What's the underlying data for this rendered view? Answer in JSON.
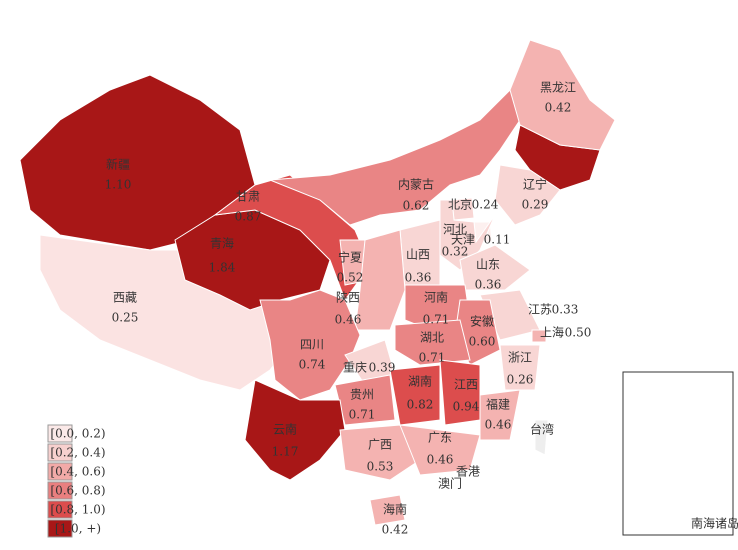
{
  "regions": [
    {
      "name": "新疆",
      "value": 1.1,
      "label": "1.10",
      "color": "#a81717"
    },
    {
      "name": "西藏",
      "value": 0.25,
      "label": "0.25",
      "color": "#fbe3e2"
    },
    {
      "name": "青海",
      "value": 1.84,
      "label": "1.84",
      "color": "#a81717"
    },
    {
      "name": "甘肃",
      "value": 0.87,
      "label": "0.87",
      "color": "#dc4d4d"
    },
    {
      "name": "内蒙古",
      "value": 0.62,
      "label": "0.62",
      "color": "#e98585"
    },
    {
      "name": "黑龙江",
      "value": 0.42,
      "label": "0.42",
      "color": "#f4b3b1"
    },
    {
      "name": "辽宁",
      "value": 0.29,
      "label": "0.29",
      "color": "#f8d6d4"
    },
    {
      "name": "北京",
      "value": 0.24,
      "label": "0.24",
      "color": "#f8d6d4"
    },
    {
      "name": "天津",
      "value": 0.11,
      "label": "0.11",
      "color": "#fdf0ef"
    },
    {
      "name": "河北",
      "value": 0.32,
      "label": "0.32",
      "color": "#f8d6d4"
    },
    {
      "name": "山西",
      "value": 0.36,
      "label": "0.36",
      "color": "#f8d6d4"
    },
    {
      "name": "山东",
      "value": 0.36,
      "label": "0.36",
      "color": "#f8d6d4"
    },
    {
      "name": "宁夏",
      "value": 0.52,
      "label": "0.52",
      "color": "#f4b3b1"
    },
    {
      "name": "陕西",
      "value": 0.46,
      "label": "0.46",
      "color": "#f4b3b1"
    },
    {
      "name": "河南",
      "value": 0.71,
      "label": "0.71",
      "color": "#e98585"
    },
    {
      "name": "江苏",
      "value": 0.33,
      "label": "0.33",
      "color": "#f8d6d4"
    },
    {
      "name": "安徽",
      "value": 0.6,
      "label": "0.60",
      "color": "#e98585"
    },
    {
      "name": "上海",
      "value": 0.5,
      "label": "0.50",
      "color": "#f4b3b1"
    },
    {
      "name": "湖北",
      "value": 0.71,
      "label": "0.71",
      "color": "#e98585"
    },
    {
      "name": "四川",
      "value": 0.74,
      "label": "0.74",
      "color": "#e98585"
    },
    {
      "name": "重庆",
      "value": 0.39,
      "label": "0.39",
      "color": "#f8d6d4"
    },
    {
      "name": "浙江",
      "value": 0.26,
      "label": "0.26",
      "color": "#f8d6d4"
    },
    {
      "name": "湖南",
      "value": 0.82,
      "label": "0.82",
      "color": "#dc4d4d"
    },
    {
      "name": "江西",
      "value": 0.94,
      "label": "0.94",
      "color": "#dc4d4d"
    },
    {
      "name": "福建",
      "value": 0.46,
      "label": "0.46",
      "color": "#f4b3b1"
    },
    {
      "name": "贵州",
      "value": 0.71,
      "label": "0.71",
      "color": "#e98585"
    },
    {
      "name": "云南",
      "value": 1.17,
      "label": "1.17",
      "color": "#a81717"
    },
    {
      "name": "广西",
      "value": 0.53,
      "label": "0.53",
      "color": "#f4b3b1"
    },
    {
      "name": "广东",
      "value": 0.46,
      "label": "0.46",
      "color": "#f4b3b1"
    },
    {
      "name": "海南",
      "value": 0.42,
      "label": "0.42",
      "color": "#f4b3b1"
    }
  ],
  "places": [
    "香港",
    "澳门",
    "台湾",
    "南海诸岛"
  ],
  "legend": [
    {
      "label": "[0.0, 0.2)",
      "color": "#fbe9e8"
    },
    {
      "label": "[0.2, 0.4)",
      "color": "#f7d0ce"
    },
    {
      "label": "[0.4, 0.6)",
      "color": "#f2aaa8"
    },
    {
      "label": "[0.6, 0.8)",
      "color": "#e97f7f"
    },
    {
      "label": "[0.8, 1.0)",
      "color": "#dc4d4d"
    },
    {
      "label": "[1.0, +)",
      "color": "#a81717"
    }
  ]
}
